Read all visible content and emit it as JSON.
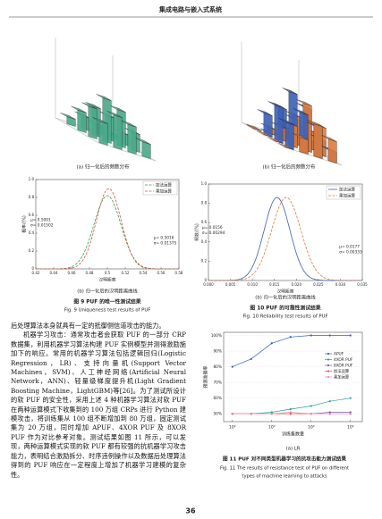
{
  "header": {
    "title": "集成电路与嵌入式系统"
  },
  "figure8": {
    "panels": [
      {
        "caption": "(a) 归一化后的频数分布",
        "series": [
          {
            "color": "#4aa88a",
            "values": [
              [
                0.3,
                0.45,
                0.38,
                0.2
              ],
              [
                0.42,
                0.6,
                0.5,
                0.25
              ],
              [
                0.28,
                0.4,
                0.33,
                0.15
              ],
              [
                0.1,
                0.18,
                0.12,
                0.06
              ]
            ]
          }
        ]
      },
      {
        "caption": "(b) 归一化后的频数分布",
        "series": [
          {
            "color": "#3b5fb5",
            "values": [
              [
                0.35,
                0.55,
                0.42,
                0.15
              ],
              [
                0.5,
                0.75,
                0.6,
                0.22
              ],
              [
                0.3,
                0.45,
                0.35,
                0.12
              ],
              [
                0.0,
                0.0,
                0.0,
                0.0
              ]
            ]
          },
          {
            "color": "#e07b39",
            "values": [
              [
                0.0,
                0.2,
                0.45,
                0.3
              ],
              [
                0.0,
                0.3,
                0.65,
                0.4
              ],
              [
                0.0,
                0.18,
                0.4,
                0.25
              ],
              [
                0.0,
                0.08,
                0.15,
                0.1
              ]
            ]
          }
        ]
      }
    ]
  },
  "figure9": {
    "type": "line",
    "caption": "(b) 归一化后的汉明距离曲线",
    "title": "图 9  PUF 的唯一性测试结果",
    "title_en": "Fig. 9   Uniqueness test results of PUF",
    "xlabel": "汉明距离",
    "ylabel": "概率/(%)",
    "xlim": [
      0.42,
      0.58
    ],
    "ylim": [
      0,
      1
    ],
    "xticks": [
      0.42,
      0.44,
      0.46,
      0.48,
      0.5,
      {
        "value": 0.52,
        "label": "0.52"
      },
      0.54,
      0.56,
      0.58
    ],
    "yticks": [
      0,
      0.2,
      0.4,
      0.6,
      0.8,
      {
        "value": 1,
        "label": "1.0"
      }
    ],
    "series": [
      {
        "name": "加法运算",
        "color": "#3a9a4a",
        "dash": true,
        "peak": 0.82,
        "mu": {
          "value": 0.5001,
          "label": "μ= 0.5001"
        },
        "sigma": {
          "value": 0.01502,
          "label": "σ= 0.01502"
        }
      },
      {
        "name": "乘加运算",
        "color": "#d9534f",
        "dash": true,
        "peak": 0.9,
        "mu": {
          "value": 0.5016,
          "label": "μ= 0.5016"
        },
        "sigma": {
          "value": 0.01375,
          "label": "σ= 0.01375"
        }
      }
    ]
  },
  "figure10": {
    "type": "line",
    "caption": "(b) 归一化后的汉明距离曲线",
    "title": "图 10   PUF 的可靠性测试结果",
    "title_en": "Fig. 10   Reliability test results of PUF",
    "xlabel": "汉明距离",
    "ylabel": "频数/(%)",
    "xlim": [
      0,
      0.035
    ],
    "ylim": [
      0,
      1
    ],
    "xticks": [
      {
        "value": 0,
        "label": "0.000"
      },
      0.005,
      {
        "value": 0.01,
        "label": "0.010"
      },
      0.015,
      {
        "value": 0.02,
        "label": "0.020"
      },
      0.025,
      {
        "value": 0.03,
        "label": "0.030"
      },
      0.035
    ],
    "yticks": [
      0,
      0.2,
      0.4,
      0.6,
      0.8,
      {
        "value": 1,
        "label": "1.0"
      }
    ],
    "series": [
      {
        "name": "加法运算",
        "color": "#3b5fb5",
        "dash": false,
        "peak": 0.86,
        "mu": {
          "value": 0.0156,
          "label": "μ= 0.0156"
        },
        "sigma": {
          "value": 0.00294,
          "label": "σ= 0.00294"
        }
      },
      {
        "name": "乘加运算",
        "color": "#e07b39",
        "dash": true,
        "peak": 0.86,
        "mu": {
          "value": 0.0177,
          "label": "μ= 0.0177"
        },
        "sigma": {
          "value": 0.00333,
          "label": "σ= 0.00333"
        }
      }
    ]
  },
  "body": {
    "paragraphs": [
      "后处理算法本身就具有一定的抵御侧信道攻击的能力。",
      "机器学习攻击：通常攻击者会获取 PUF 的一部分 CRP 数据集，利用机器学习算法构建 PUF 实例模型并测得激励施加下的响应。常用的机器学习算法包括逻辑回归(Logistic Regression，LR)、支持向量机(Support Vector Machines，SVM)、人工神经网络(Artificial Neural Network，ANN)、轻量级梯度提升机(Light Gradient Boosting Machine，LightGBM)等[26]。为了测试所设计的软 PUF 的安全性，采用上述 4 种机器学习算法对软 PUF 在两种运算模式下收集到的 100 万组 CRPs 进行 Python 建模攻击，将训练集从 100 组不断增加到 80 万组，固定测试集为 20 万组，同时增加 APUF、4XOR PUF 及 8XOR PUF 作为对比参考对象。测试结果如图 11 所示，可以发现，两种运算模式实现的软 PUF 都有较强的抗机器学习攻击能力，表明结合激励拆分、时序违例操作以及数据后处理算法得到的 PUF 响应在一定程度上增加了机器学习建模的复杂性。"
    ]
  },
  "figure11": {
    "type": "line",
    "caption": "(a) LR",
    "title": "图 11   PUF 对不同类型机器学习的抗攻击能力测试结果",
    "title_en": [
      "Fig. 11   The results of resistance test of PUF on different",
      "types of machine learning to attacks"
    ],
    "xlabel": "训练集数量",
    "ylabel": "预测准确率",
    "xscale": "log",
    "xlim": [
      60,
      200000
    ],
    "ylim": [
      45,
      102
    ],
    "xticks": [
      {
        "value": 100,
        "label": "10²"
      },
      {
        "value": 1000,
        "label": "10³"
      },
      {
        "value": 10000,
        "label": "10⁴"
      },
      {
        "value": 100000,
        "label": "10⁵"
      }
    ],
    "yticks": [
      {
        "value": 50,
        "label": "50%"
      },
      {
        "value": 60,
        "label": "60%"
      },
      {
        "value": 70,
        "label": "70%"
      },
      {
        "value": 80,
        "label": "80%"
      },
      {
        "value": 90,
        "label": "90%"
      },
      {
        "value": 100,
        "label": "100%"
      }
    ],
    "x": [
      100,
      300,
      1000,
      3000,
      10000,
      30000,
      100000
    ],
    "series": [
      {
        "name": "APUF",
        "color": "#3b5fb5",
        "values": [
          80,
          85,
          95,
          99,
          100,
          100,
          100
        ]
      },
      {
        "name": "4XOR PUF",
        "color": "#2aa198",
        "values": [
          50,
          50,
          51,
          53,
          55,
          58,
          60
        ]
      },
      {
        "name": "8XOR PUF",
        "color": "#7b5ea7",
        "values": [
          50,
          50,
          50,
          50,
          50,
          51,
          51
        ]
      },
      {
        "name": "加法运算",
        "color": "#d9534f",
        "values": [
          50,
          50,
          50,
          50,
          50,
          50,
          50
        ]
      },
      {
        "name": "乘加运算",
        "color": "#e38bb0",
        "values": [
          50,
          50,
          50,
          51,
          50,
          50,
          50
        ]
      }
    ]
  },
  "footer": {
    "page": "36"
  }
}
